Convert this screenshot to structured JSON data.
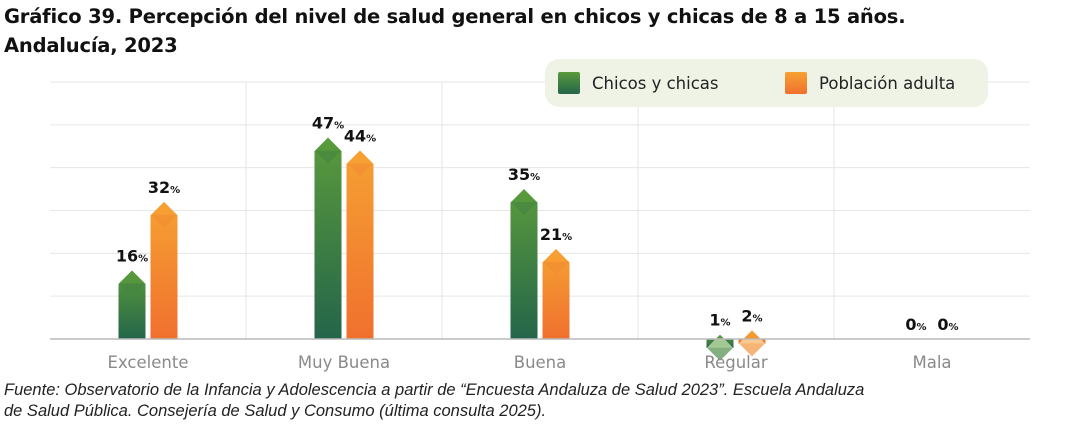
{
  "title_line1": "Gráfico 39. Percepción del nivel de salud general en chicos y chicas de 8 a 15 años.",
  "title_line2": "Andalucía, 2023",
  "source_line1": "Fuente: Observatorio de la Infancia y Adolescencia a partir de “Encuesta Andaluza de Salud 2023”. Escuela Andaluza",
  "source_line2": "de Salud Pública. Consejería de Salud y Consumo (última consulta 2025).",
  "colors": {
    "green_top": "#5a9a3c",
    "green_bottom": "#24654a",
    "orange_top": "#f5a133",
    "orange_bottom": "#f0702e",
    "legend_bg": "#eef3e6",
    "grid": "#e6e6e6",
    "axis": "#b9b9b9"
  },
  "chart_data": {
    "type": "bar",
    "categories": [
      "Excelente",
      "Muy Buena",
      "Buena",
      "Regular",
      "Mala"
    ],
    "series": [
      {
        "name": "Chicos y chicas",
        "values": [
          16,
          47,
          35,
          1,
          0
        ],
        "labels": [
          "16",
          "47",
          "35",
          "1",
          "0"
        ]
      },
      {
        "name": "Población adulta",
        "values": [
          32,
          44,
          21,
          2,
          0
        ],
        "labels": [
          "32",
          "44",
          "21",
          "2",
          "0"
        ]
      }
    ],
    "value_suffix": "%",
    "ylim": [
      0,
      60
    ],
    "grid": true,
    "legend_position": "top-right"
  }
}
